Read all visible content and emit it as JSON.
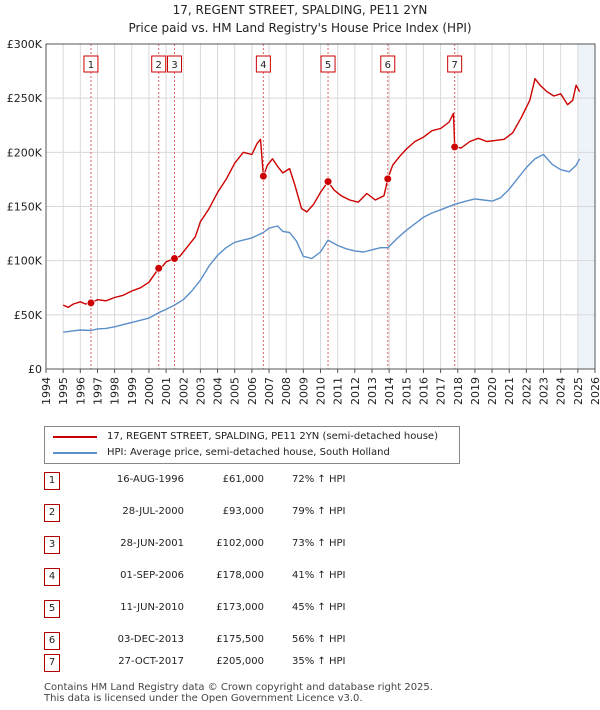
{
  "chart_data": {
    "type": "line",
    "title": "17, REGENT STREET, SPALDING, PE11 2YN",
    "subtitle": "Price paid vs. HM Land Registry's House Price Index (HPI)",
    "xlabel": "",
    "ylabel": "",
    "xlim": [
      1994,
      2026
    ],
    "ylim": [
      0,
      300000
    ],
    "y_ticks": [
      0,
      50000,
      100000,
      150000,
      200000,
      250000,
      300000
    ],
    "y_tick_labels": [
      "£0",
      "£50K",
      "£100K",
      "£150K",
      "£200K",
      "£250K",
      "£300K"
    ],
    "x_ticks": [
      1994,
      1995,
      1996,
      1997,
      1998,
      1999,
      2000,
      2001,
      2002,
      2003,
      2004,
      2005,
      2006,
      2007,
      2008,
      2009,
      2010,
      2011,
      2012,
      2013,
      2014,
      2015,
      2016,
      2017,
      2018,
      2019,
      2020,
      2021,
      2022,
      2023,
      2024,
      2025,
      2026
    ],
    "future_shade_from": 2025.0,
    "colors": {
      "property": "#cc0000",
      "hpi": "#5b8fc9",
      "marker_line": "#e06666",
      "grid": "#d8d8d8",
      "shade": "#eef3f9"
    },
    "series": [
      {
        "name": "17, REGENT STREET, SPALDING, PE11 2YN (semi-detached house)",
        "color": "#cc0000",
        "x": [
          1995.0,
          1995.3,
          1995.6,
          1996.0,
          1996.3,
          1996.62,
          1997.0,
          1997.5,
          1998.0,
          1998.5,
          1999.0,
          1999.5,
          2000.0,
          2000.57,
          2000.8,
          2001.0,
          2001.49,
          2001.8,
          2002.2,
          2002.7,
          2003.0,
          2003.5,
          2004.0,
          2004.5,
          2005.0,
          2005.5,
          2006.0,
          2006.3,
          2006.5,
          2006.67,
          2006.9,
          2007.2,
          2007.5,
          2007.8,
          2008.2,
          2008.5,
          2008.9,
          2009.2,
          2009.6,
          2010.0,
          2010.44,
          2010.8,
          2011.2,
          2011.7,
          2012.2,
          2012.7,
          2013.2,
          2013.7,
          2013.92,
          2014.2,
          2014.6,
          2015.0,
          2015.5,
          2016.0,
          2016.5,
          2017.0,
          2017.5,
          2017.75,
          2017.82,
          2018.2,
          2018.7,
          2019.2,
          2019.7,
          2020.2,
          2020.7,
          2021.2,
          2021.7,
          2022.2,
          2022.5,
          2022.8,
          2023.2,
          2023.6,
          2024.0,
          2024.4,
          2024.7,
          2024.9,
          2025.1
        ],
        "y": [
          59000,
          57000,
          60000,
          62000,
          60000,
          61000,
          64000,
          63000,
          66000,
          68000,
          72000,
          75000,
          80000,
          93000,
          95000,
          99000,
          102000,
          104000,
          112000,
          122000,
          136000,
          148000,
          163000,
          175000,
          190000,
          200000,
          198000,
          208000,
          212000,
          178000,
          188000,
          194000,
          187000,
          181000,
          185000,
          170000,
          148000,
          145000,
          152000,
          163000,
          173000,
          165000,
          160000,
          156000,
          154000,
          162000,
          156000,
          160000,
          175500,
          188000,
          196000,
          203000,
          210000,
          214000,
          220000,
          222000,
          228000,
          236000,
          205000,
          204000,
          210000,
          213000,
          210000,
          211000,
          212000,
          218000,
          232000,
          248000,
          268000,
          262000,
          256000,
          252000,
          254000,
          244000,
          248000,
          262000,
          256000
        ]
      },
      {
        "name": "HPI: Average price, semi-detached house, South Holland",
        "color": "#5b8fc9",
        "x": [
          1995.0,
          1995.5,
          1996.0,
          1996.62,
          1997.0,
          1997.5,
          1998.0,
          1998.5,
          1999.0,
          1999.5,
          2000.0,
          2000.57,
          2001.0,
          2001.49,
          2002.0,
          2002.5,
          2003.0,
          2003.5,
          2004.0,
          2004.5,
          2005.0,
          2005.5,
          2006.0,
          2006.67,
          2007.0,
          2007.5,
          2007.8,
          2008.2,
          2008.6,
          2009.0,
          2009.5,
          2010.0,
          2010.44,
          2011.0,
          2011.5,
          2012.0,
          2012.5,
          2013.0,
          2013.5,
          2013.92,
          2014.5,
          2015.0,
          2015.5,
          2016.0,
          2016.5,
          2017.0,
          2017.82,
          2018.5,
          2019.0,
          2019.5,
          2020.0,
          2020.5,
          2021.0,
          2021.5,
          2022.0,
          2022.5,
          2023.0,
          2023.5,
          2024.0,
          2024.5,
          2024.9,
          2025.1
        ],
        "y": [
          34000,
          35000,
          36000,
          35500,
          37000,
          37500,
          39000,
          41000,
          43000,
          45000,
          47000,
          52000,
          55000,
          59000,
          64000,
          72000,
          82000,
          95000,
          105000,
          112000,
          117000,
          119000,
          121000,
          126000,
          130000,
          132000,
          127000,
          126000,
          118000,
          104000,
          102000,
          108000,
          119000,
          114000,
          111000,
          109000,
          108000,
          110000,
          112000,
          112000,
          121000,
          128000,
          134000,
          140000,
          144000,
          147000,
          152000,
          155000,
          157000,
          156000,
          155000,
          158000,
          166000,
          176000,
          186000,
          194000,
          198000,
          189000,
          184000,
          182000,
          188000,
          194000
        ]
      }
    ],
    "sales": [
      {
        "label": "1",
        "x": 1996.62,
        "price": 61000
      },
      {
        "label": "2",
        "x": 2000.57,
        "price": 93000
      },
      {
        "label": "3",
        "x": 2001.49,
        "price": 102000
      },
      {
        "label": "4",
        "x": 2006.67,
        "price": 178000
      },
      {
        "label": "5",
        "x": 2010.44,
        "price": 173000
      },
      {
        "label": "6",
        "x": 2013.92,
        "price": 175500
      },
      {
        "label": "7",
        "x": 2017.82,
        "price": 205000
      }
    ]
  },
  "legend": {
    "property_label": "17, REGENT STREET, SPALDING, PE11 2YN (semi-detached house)",
    "hpi_label": "HPI: Average price, semi-detached house, South Holland"
  },
  "transactions": [
    {
      "num": "1",
      "date": "16-AUG-1996",
      "price": "£61,000",
      "hpi": "72% ↑ HPI"
    },
    {
      "num": "2",
      "date": "28-JUL-2000",
      "price": "£93,000",
      "hpi": "79% ↑ HPI"
    },
    {
      "num": "3",
      "date": "28-JUN-2001",
      "price": "£102,000",
      "hpi": "73% ↑ HPI"
    },
    {
      "num": "4",
      "date": "01-SEP-2006",
      "price": "£178,000",
      "hpi": "41% ↑ HPI"
    },
    {
      "num": "5",
      "date": "11-JUN-2010",
      "price": "£173,000",
      "hpi": "45% ↑ HPI"
    },
    {
      "num": "6",
      "date": "03-DEC-2013",
      "price": "£175,500",
      "hpi": "56% ↑ HPI"
    },
    {
      "num": "7",
      "date": "27-OCT-2017",
      "price": "£205,000",
      "hpi": "35% ↑ HPI"
    }
  ],
  "footer": {
    "line1": "Contains HM Land Registry data © Crown copyright and database right 2025.",
    "line2": "This data is licensed under the Open Government Licence v3.0."
  }
}
